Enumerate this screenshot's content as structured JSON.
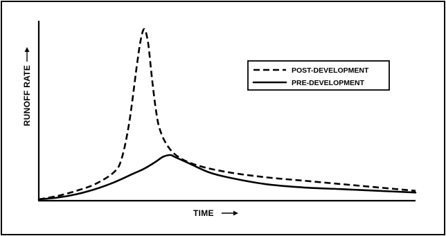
{
  "chart_data": {
    "type": "line",
    "title": "",
    "xlabel": "TIME",
    "ylabel": "RUNOFF RATE",
    "xlabel_arrow": "→",
    "ylabel_arrow": "→",
    "xlim": [
      0,
      100
    ],
    "ylim": [
      0,
      100
    ],
    "grid": false,
    "legend_placement": "top-right",
    "series": [
      {
        "name": "POST-DEVELOPMENT",
        "style": "dashed",
        "color": "#000000",
        "points": [
          [
            0,
            0
          ],
          [
            5,
            2
          ],
          [
            10,
            5
          ],
          [
            15,
            9
          ],
          [
            20,
            16
          ],
          [
            22,
            24
          ],
          [
            24,
            45
          ],
          [
            26,
            78
          ],
          [
            27,
            93
          ],
          [
            28,
            100
          ],
          [
            29,
            92
          ],
          [
            30,
            72
          ],
          [
            31,
            54
          ],
          [
            32,
            42
          ],
          [
            34,
            32
          ],
          [
            37,
            25
          ],
          [
            42,
            20
          ],
          [
            50,
            16
          ],
          [
            60,
            13
          ],
          [
            70,
            11
          ],
          [
            80,
            9
          ],
          [
            90,
            7
          ],
          [
            100,
            5
          ]
        ]
      },
      {
        "name": "PRE-DEVELOPMENT",
        "style": "solid",
        "color": "#000000",
        "points": [
          [
            0,
            0
          ],
          [
            5,
            1
          ],
          [
            10,
            3
          ],
          [
            15,
            6
          ],
          [
            20,
            10
          ],
          [
            25,
            15
          ],
          [
            28,
            18
          ],
          [
            31,
            22
          ],
          [
            33,
            25
          ],
          [
            35,
            26
          ],
          [
            36,
            25
          ],
          [
            40,
            21
          ],
          [
            45,
            16
          ],
          [
            50,
            13
          ],
          [
            60,
            9
          ],
          [
            70,
            7
          ],
          [
            80,
            6
          ],
          [
            90,
            5
          ],
          [
            100,
            4
          ]
        ]
      }
    ]
  }
}
